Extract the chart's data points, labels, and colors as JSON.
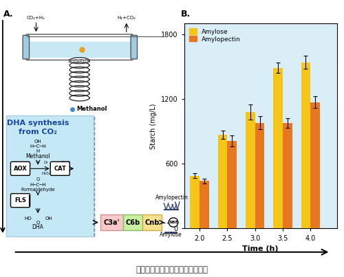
{
  "title_bottom": "利用人工途径从二氧化碳合成淀粉",
  "panel_B": {
    "xlabel": "Time (h)",
    "ylabel": "Starch (mg/L)",
    "ylabel_rotated": "DHA synthesis\nfrom CO₂",
    "time_points": [
      2,
      2.5,
      3,
      3.5,
      4
    ],
    "amylose_values": [
      490,
      870,
      1080,
      1490,
      1540
    ],
    "amylopectin_values": [
      440,
      810,
      980,
      980,
      1170
    ],
    "amylose_errors": [
      25,
      40,
      70,
      50,
      60
    ],
    "amylopectin_errors": [
      20,
      50,
      60,
      45,
      55
    ],
    "amylose_color": "#F5C518",
    "amylopectin_color": "#E87820",
    "bg_color": "#daeef7",
    "ylim": [
      0,
      1900
    ],
    "yticks": [
      0,
      600,
      1200,
      1800
    ],
    "bar_width": 0.17
  },
  "bg_white": "#ffffff",
  "label_A": "A.",
  "label_B": "B.",
  "pathway_bg": "#c5e8f7",
  "C3a_color": "#f9c8c8",
  "C6b_color": "#c8f0a0",
  "Cnb_color": "#f5e090",
  "reactor_fill": "#c8e8f5",
  "reactor_edge": "#888888"
}
